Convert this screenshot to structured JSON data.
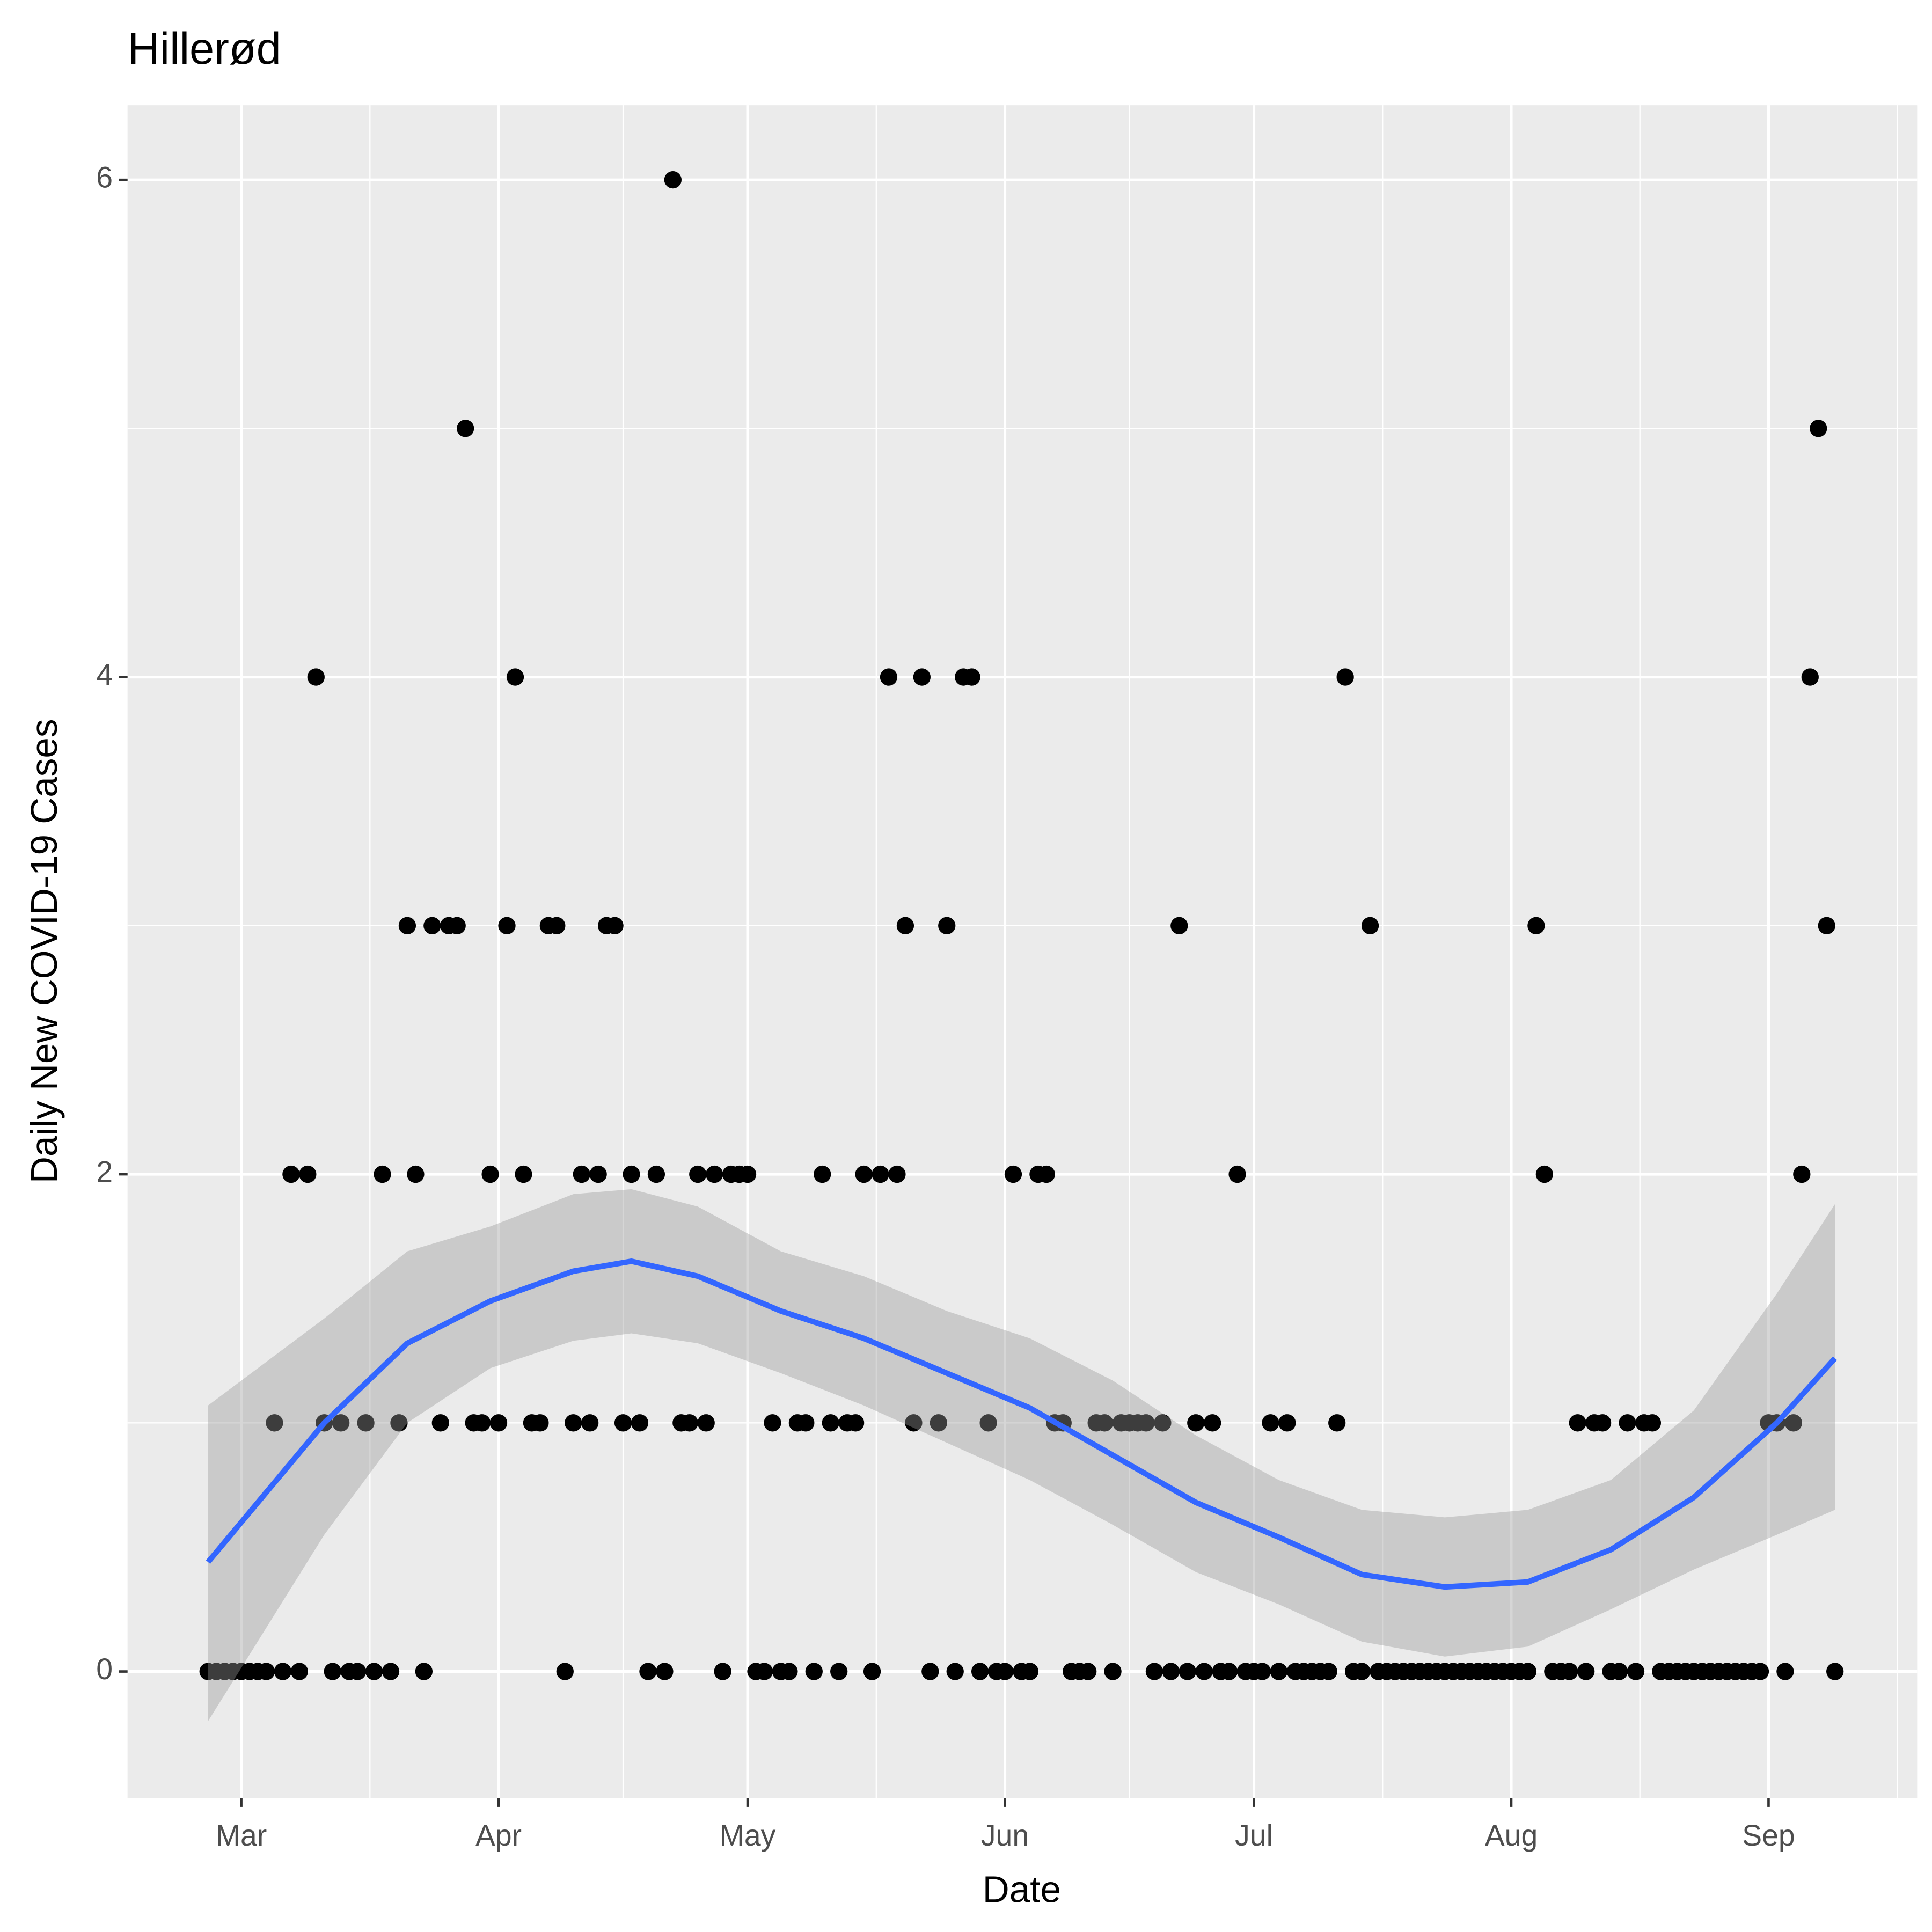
{
  "chart_data": {
    "type": "scatter",
    "title": "Hillerød",
    "x_label": "Date",
    "y_label": "Daily New COVID-19 Cases",
    "color": "#000000",
    "x": [
      -4,
      -3,
      -2,
      -1,
      0,
      1,
      2,
      3,
      4,
      5,
      6,
      7,
      8,
      9,
      10,
      11,
      12,
      13,
      14,
      15,
      16,
      17,
      18,
      19,
      20,
      21,
      22,
      23,
      24,
      25,
      26,
      27,
      28,
      29,
      30,
      31,
      32,
      33,
      34,
      35,
      36,
      37,
      38,
      39,
      40,
      41,
      42,
      43,
      44,
      45,
      46,
      47,
      48,
      49,
      50,
      51,
      52,
      53,
      54,
      55,
      56,
      57,
      58,
      59,
      60,
      61,
      62,
      63,
      64,
      65,
      66,
      67,
      68,
      69,
      70,
      71,
      72,
      73,
      74,
      75,
      76,
      77,
      78,
      79,
      80,
      81,
      82,
      83,
      84,
      85,
      86,
      87,
      88,
      89,
      90,
      91,
      92,
      93,
      94,
      95,
      96,
      97,
      98,
      99,
      100,
      101,
      102,
      103,
      104,
      105,
      106,
      107,
      108,
      109,
      110,
      111,
      112,
      113,
      114,
      115,
      116,
      117,
      118,
      119,
      120,
      121,
      122,
      123,
      124,
      125,
      126,
      127,
      128,
      129,
      130,
      131,
      132,
      133,
      134,
      135,
      136,
      137,
      138,
      139,
      140,
      141,
      142,
      143,
      144,
      145,
      146,
      147,
      148,
      149,
      150,
      151,
      152,
      153,
      154,
      155,
      156,
      157,
      158,
      159,
      160,
      161,
      162,
      163,
      164,
      165,
      166,
      167,
      168,
      169,
      170,
      171,
      172,
      173,
      174,
      175,
      176,
      177,
      178,
      179,
      180,
      181,
      182,
      183,
      184,
      185,
      186,
      187,
      188,
      189,
      190,
      191,
      192
    ],
    "values": [
      0,
      0,
      0,
      0,
      0,
      0,
      0,
      0,
      1,
      0,
      2,
      0,
      2,
      4,
      1,
      0,
      1,
      0,
      0,
      1,
      0,
      2,
      0,
      1,
      3,
      2,
      0,
      3,
      1,
      3,
      3,
      5,
      1,
      1,
      2,
      1,
      3,
      4,
      2,
      1,
      1,
      3,
      3,
      0,
      1,
      2,
      1,
      2,
      3,
      3,
      1,
      2,
      1,
      0,
      2,
      0,
      6,
      1,
      1,
      2,
      1,
      2,
      0,
      2,
      2,
      2,
      0,
      0,
      1,
      0,
      0,
      1,
      1,
      0,
      2,
      1,
      0,
      1,
      1,
      2,
      0,
      2,
      4,
      2,
      3,
      1,
      4,
      0,
      1,
      3,
      0,
      4,
      4,
      0,
      1,
      0,
      0,
      2,
      0,
      0,
      2,
      2,
      1,
      1,
      0,
      0,
      0,
      1,
      1,
      0,
      1,
      1,
      1,
      1,
      0,
      1,
      0,
      3,
      0,
      1,
      0,
      1,
      0,
      0,
      2,
      0,
      0,
      0,
      1,
      0,
      1,
      0,
      0,
      0,
      0,
      0,
      1,
      4,
      0,
      0,
      3,
      0,
      0,
      0,
      0,
      0,
      0,
      0,
      0,
      0,
      0,
      0,
      0,
      0,
      0,
      0,
      0,
      0,
      0,
      0,
      3,
      2,
      0,
      0,
      0,
      1,
      0,
      1,
      1,
      0,
      0,
      1,
      0,
      1,
      1,
      0,
      0,
      0,
      0,
      0,
      0,
      0,
      0,
      0,
      0,
      0,
      0,
      0,
      1,
      1,
      0,
      1,
      2,
      4,
      5,
      3,
      0
    ],
    "smooth": {
      "color": "#3366ff",
      "band_color": "#999999",
      "x": [
        -4,
        10,
        20,
        30,
        40,
        47,
        55,
        65,
        75,
        85,
        95,
        105,
        115,
        125,
        135,
        145,
        155,
        165,
        175,
        185,
        192
      ],
      "y": [
        0.44,
        1.0,
        1.32,
        1.49,
        1.61,
        1.65,
        1.59,
        1.45,
        1.34,
        1.2,
        1.06,
        0.87,
        0.68,
        0.54,
        0.39,
        0.34,
        0.36,
        0.49,
        0.7,
        1.0,
        1.26
      ],
      "upper": [
        1.07,
        1.42,
        1.69,
        1.79,
        1.92,
        1.94,
        1.87,
        1.69,
        1.59,
        1.45,
        1.34,
        1.17,
        0.95,
        0.77,
        0.65,
        0.62,
        0.65,
        0.77,
        1.05,
        1.52,
        1.88
      ],
      "lower": [
        -0.2,
        0.55,
        1.0,
        1.22,
        1.33,
        1.36,
        1.32,
        1.2,
        1.07,
        0.92,
        0.77,
        0.59,
        0.4,
        0.27,
        0.12,
        0.06,
        0.1,
        0.25,
        0.41,
        0.55,
        0.65
      ]
    },
    "xlim": [
      -13.7,
      201.9
    ],
    "xticks": [
      {
        "value": 0,
        "label": "Mar"
      },
      {
        "value": 31,
        "label": "Apr"
      },
      {
        "value": 61,
        "label": "May"
      },
      {
        "value": 92,
        "label": "Jun"
      },
      {
        "value": 122,
        "label": "Jul"
      },
      {
        "value": 153,
        "label": "Aug"
      },
      {
        "value": 184,
        "label": "Sep"
      }
    ],
    "ylim": [
      -0.51,
      6.3
    ],
    "yticks": [
      0,
      2,
      4,
      6
    ],
    "grid": true
  }
}
